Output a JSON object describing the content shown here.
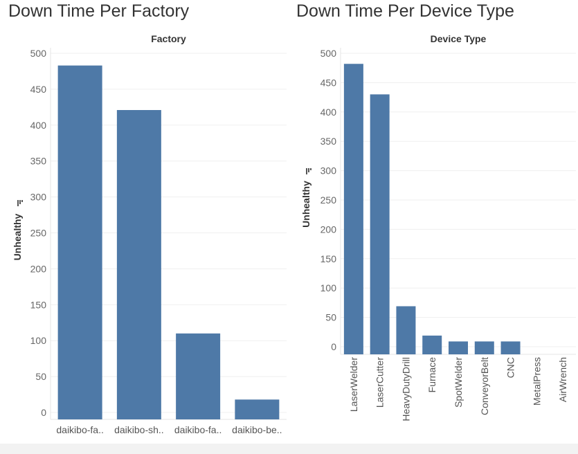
{
  "colors": {
    "bar": "#4e79a7",
    "grid": "#efefef"
  },
  "chart_data": [
    {
      "type": "bar",
      "title": "Down Time Per Factory",
      "header": "Factory",
      "ylabel": "Unhealthy",
      "ylabel_icon": "sort-descending-icon",
      "ylim": [
        0,
        500
      ],
      "yticks": [
        0,
        50,
        100,
        150,
        200,
        250,
        300,
        350,
        400,
        450,
        500
      ],
      "categories": [
        "daikibo-fa..",
        "daikibo-sh..",
        "daikibo-fa..",
        "daikibo-be.."
      ],
      "values": [
        483,
        421,
        110,
        18
      ],
      "grid": true,
      "legend": "none"
    },
    {
      "type": "bar",
      "title": "Down Time Per Device Type",
      "header": "Device Type",
      "ylabel": "Unhealthy",
      "ylabel_icon": "sort-descending-icon",
      "ylim": [
        0,
        500
      ],
      "yticks": [
        0,
        50,
        100,
        150,
        200,
        250,
        300,
        350,
        400,
        450,
        500
      ],
      "categories": [
        "LaserWelder",
        "LaserCutter",
        "HeavyDutyDrill",
        "Furnace",
        "SpotWelder",
        "ConveyorBelt",
        "CNC",
        "MetalPress",
        "AirWrench"
      ],
      "values": [
        482,
        430,
        69,
        19,
        9,
        9,
        9,
        0,
        0
      ],
      "grid": true,
      "legend": "none"
    }
  ]
}
